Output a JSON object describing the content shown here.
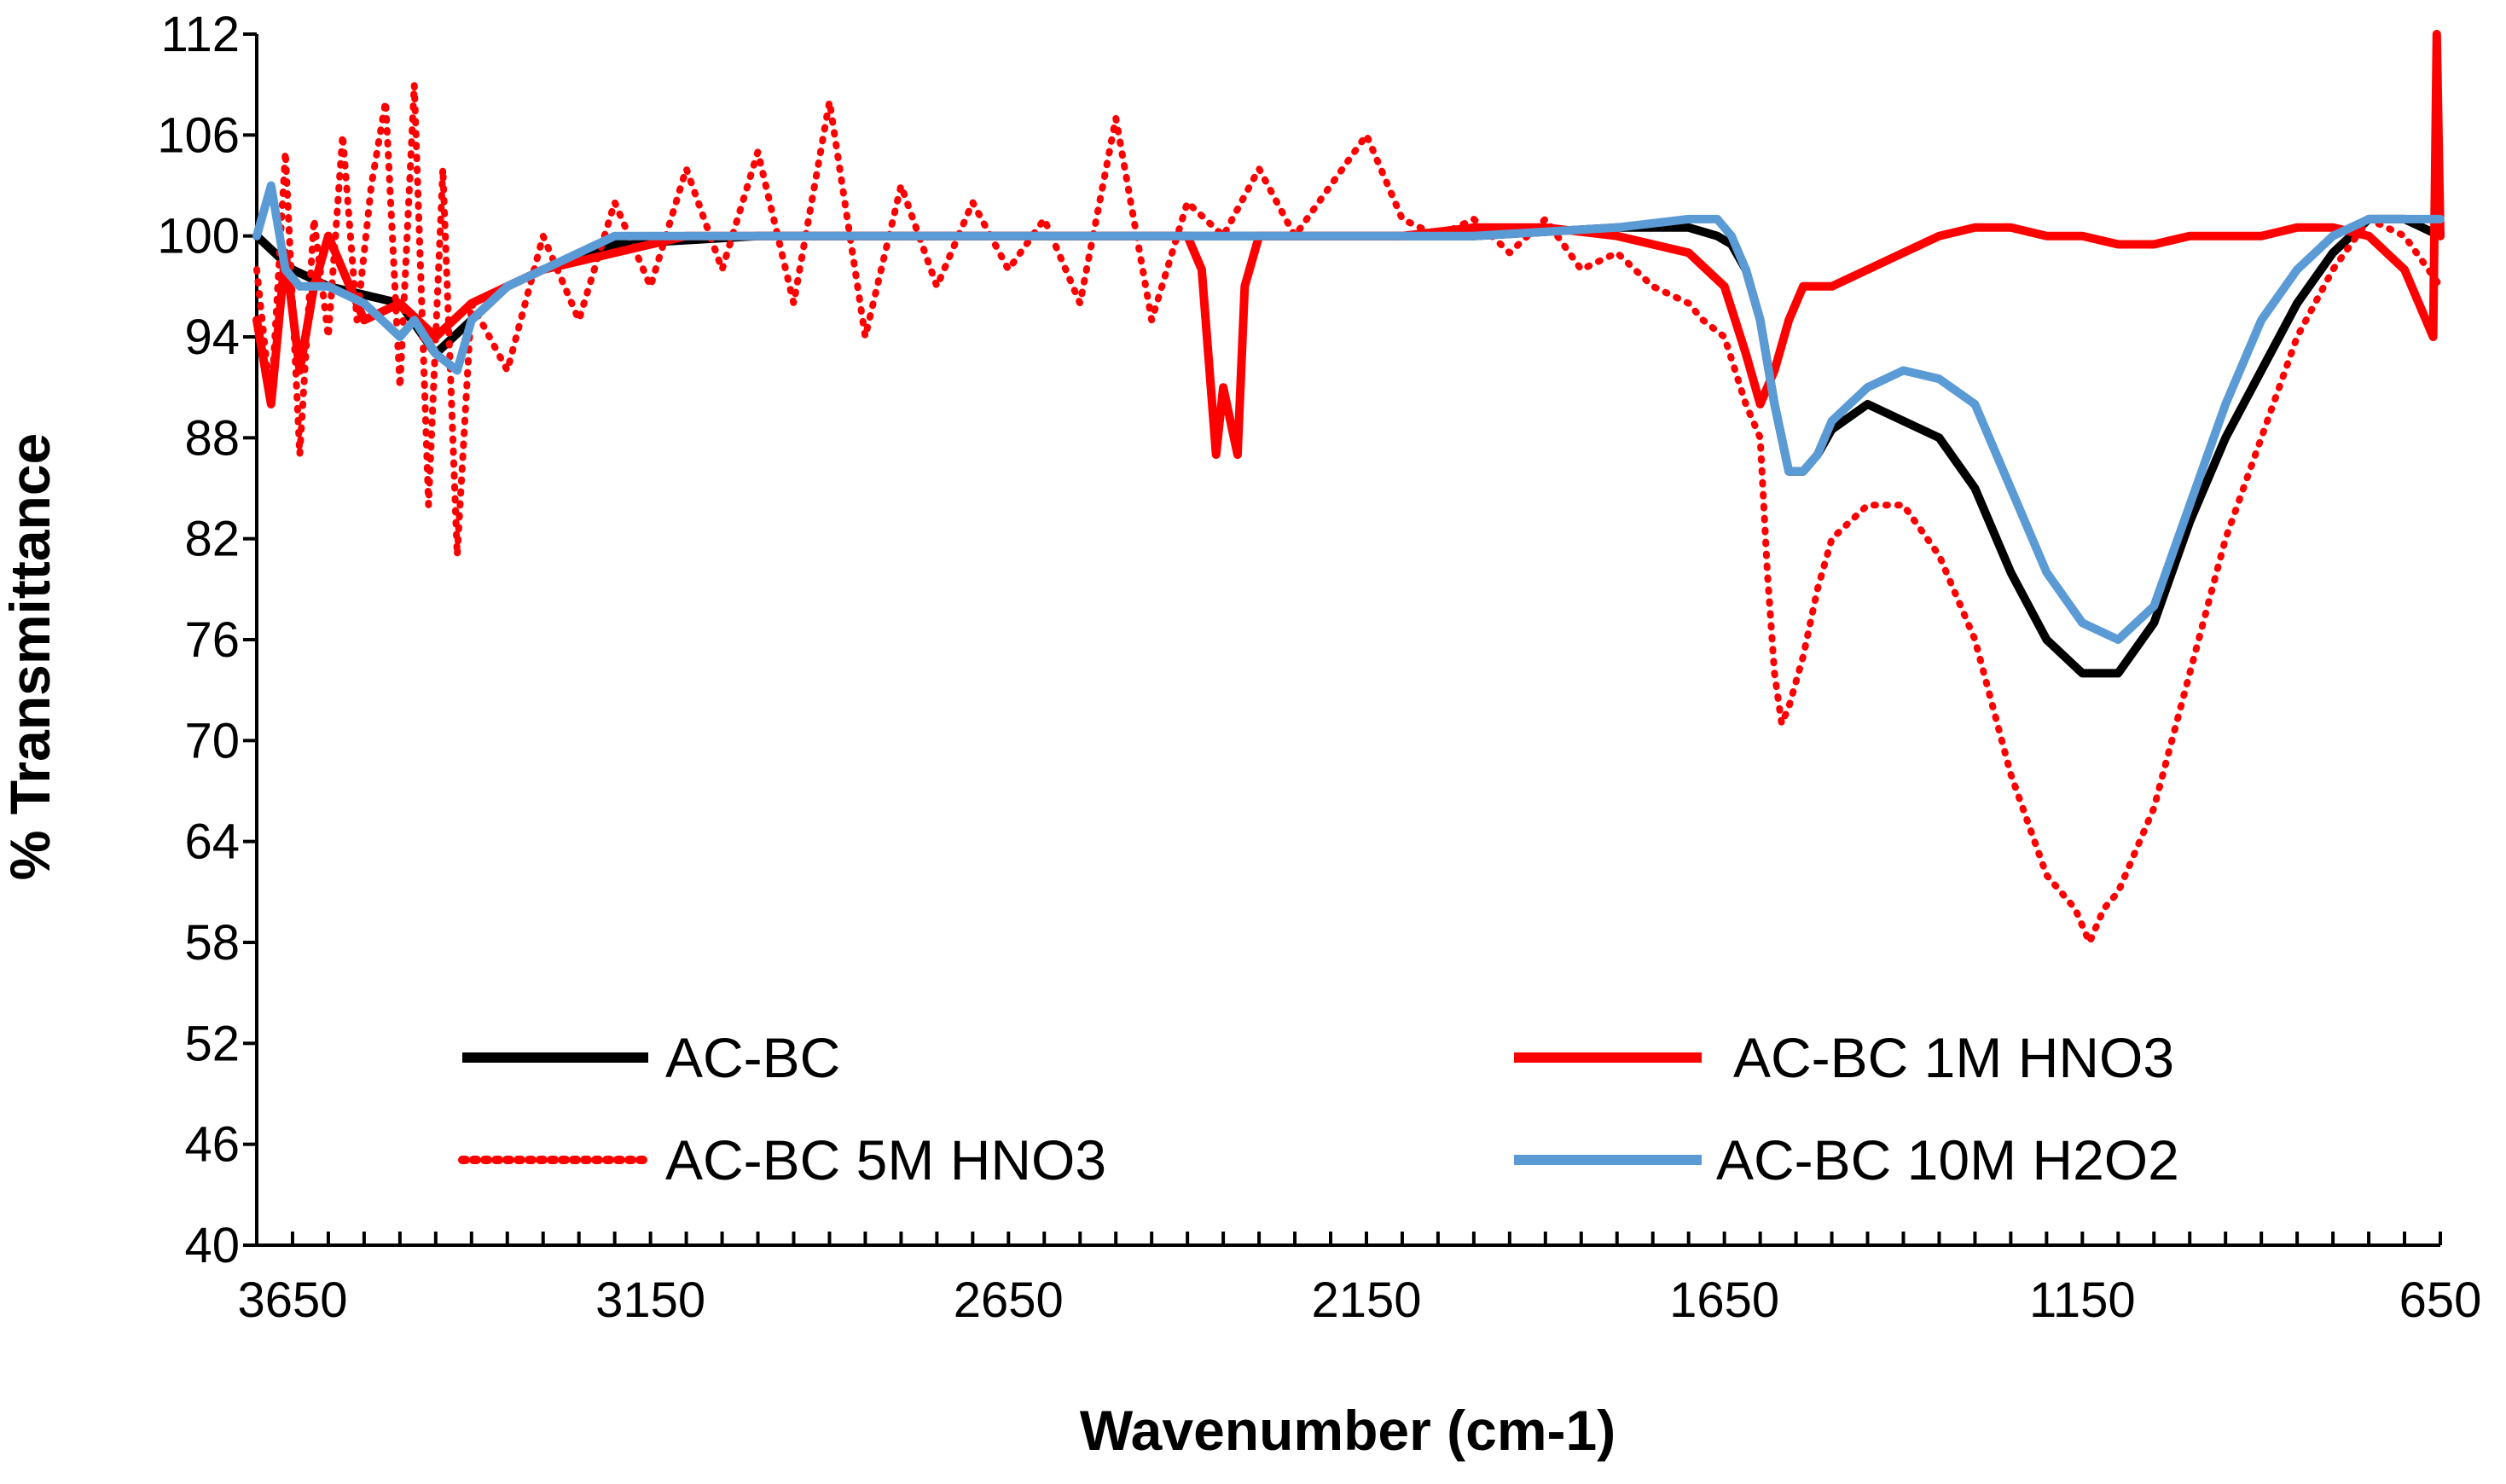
{
  "chart_data": {
    "type": "line",
    "title": "",
    "xlabel": "Wavenumber (cm-1)",
    "ylabel": "% Transmittance",
    "xlim": [
      3700,
      650
    ],
    "ylim": [
      40,
      112
    ],
    "x_reversed": true,
    "x_ticks": [
      3650,
      3150,
      2650,
      2150,
      1650,
      1150,
      650
    ],
    "y_ticks": [
      40,
      46,
      52,
      58,
      64,
      70,
      76,
      82,
      88,
      94,
      100,
      106,
      112
    ],
    "grid": false,
    "legend_placement": "bottom",
    "series": [
      {
        "name": "AC-BC",
        "color": "#000000",
        "style": "solid",
        "x": [
          3700,
          3650,
          3600,
          3500,
          3450,
          3400,
          3350,
          3300,
          3200,
          3000,
          2800,
          2600,
          2400,
          2200,
          2000,
          1800,
          1700,
          1660,
          1640,
          1620,
          1600,
          1580,
          1560,
          1540,
          1520,
          1500,
          1450,
          1400,
          1350,
          1300,
          1250,
          1200,
          1150,
          1100,
          1050,
          1000,
          950,
          900,
          850,
          800,
          750,
          700,
          650
        ],
        "y": [
          100,
          98,
          97,
          96,
          93,
          95,
          97,
          98,
          99.5,
          100,
          100,
          100,
          100,
          100,
          100,
          100.5,
          100.5,
          100,
          99.5,
          98,
          95,
          90,
          86,
          86,
          87,
          88.5,
          90,
          89,
          88,
          85,
          80,
          76,
          74,
          74,
          77,
          83,
          88,
          92,
          96,
          99,
          101,
          101,
          100
        ]
      },
      {
        "name": "AC-BC 1M HNO3",
        "color": "#ff0000",
        "style": "solid",
        "x": [
          3700,
          3680,
          3660,
          3640,
          3620,
          3600,
          3550,
          3500,
          3450,
          3400,
          3350,
          3300,
          3200,
          3100,
          3000,
          2900,
          2800,
          2700,
          2600,
          2500,
          2400,
          2380,
          2360,
          2350,
          2330,
          2320,
          2300,
          2250,
          2200,
          2150,
          2100,
          2000,
          1900,
          1800,
          1700,
          1650,
          1620,
          1600,
          1580,
          1560,
          1540,
          1500,
          1450,
          1400,
          1350,
          1300,
          1250,
          1200,
          1150,
          1100,
          1050,
          1000,
          950,
          900,
          850,
          800,
          750,
          700,
          660,
          655,
          650
        ],
        "y": [
          95,
          90,
          99,
          92,
          97,
          100,
          95,
          96,
          94,
          96,
          97,
          98,
          99,
          100,
          100,
          100,
          100,
          100,
          100,
          100,
          100,
          98,
          87,
          91,
          87,
          97,
          100,
          100,
          100,
          100,
          100,
          100.5,
          100.5,
          100,
          99,
          97,
          93,
          90,
          92,
          95,
          97,
          97,
          98,
          99,
          100,
          100.5,
          100.5,
          100,
          100,
          99.5,
          99.5,
          100,
          100,
          100,
          100.5,
          100.5,
          100,
          98,
          94,
          112,
          100
        ]
      },
      {
        "name": "AC-BC 5M HNO3",
        "color": "#ff0000",
        "style": "dotted",
        "x": [
          3700,
          3680,
          3660,
          3640,
          3620,
          3600,
          3580,
          3560,
          3540,
          3520,
          3500,
          3480,
          3460,
          3440,
          3420,
          3400,
          3350,
          3300,
          3250,
          3200,
          3150,
          3100,
          3050,
          3000,
          2950,
          2900,
          2850,
          2800,
          2750,
          2700,
          2650,
          2600,
          2550,
          2500,
          2450,
          2400,
          2350,
          2300,
          2250,
          2200,
          2150,
          2100,
          2050,
          2000,
          1950,
          1900,
          1850,
          1800,
          1750,
          1700,
          1680,
          1650,
          1620,
          1600,
          1590,
          1580,
          1570,
          1560,
          1540,
          1520,
          1500,
          1450,
          1400,
          1350,
          1300,
          1250,
          1200,
          1160,
          1140,
          1120,
          1100,
          1080,
          1050,
          1000,
          950,
          900,
          850,
          800,
          750,
          700,
          650
        ],
        "y": [
          98,
          90,
          105,
          87,
          101,
          94,
          106,
          95,
          103,
          108,
          91,
          109,
          84,
          104,
          81,
          96,
          92,
          100,
          95,
          102,
          97,
          104,
          98,
          105,
          96,
          108,
          94,
          103,
          97,
          102,
          98,
          101,
          96,
          107,
          95,
          102,
          100,
          104,
          100,
          103,
          106,
          101,
          100,
          101,
          99,
          101,
          98,
          99,
          97,
          96,
          95,
          94,
          90,
          88,
          80,
          74,
          71,
          72,
          75,
          79,
          82,
          84,
          84,
          81,
          76,
          68,
          62,
          60,
          58,
          60,
          61,
          63,
          66,
          74,
          82,
          88,
          94,
          98,
          101,
          100,
          97
        ]
      },
      {
        "name": "AC-BC 10M H2O2",
        "color": "#5b9bd5",
        "style": "solid",
        "x": [
          3700,
          3680,
          3660,
          3640,
          3600,
          3550,
          3500,
          3480,
          3450,
          3420,
          3400,
          3350,
          3300,
          3250,
          3200,
          3100,
          3000,
          2900,
          2800,
          2600,
          2400,
          2200,
          2000,
          1800,
          1700,
          1660,
          1640,
          1620,
          1600,
          1580,
          1560,
          1540,
          1520,
          1500,
          1450,
          1400,
          1350,
          1300,
          1250,
          1200,
          1150,
          1100,
          1050,
          1000,
          950,
          900,
          850,
          800,
          750,
          700,
          650
        ],
        "y": [
          100,
          103,
          98,
          97,
          97,
          96,
          94,
          95,
          93,
          92,
          95,
          97,
          98,
          99,
          100,
          100,
          100,
          100,
          100,
          100,
          100,
          100,
          100,
          100.5,
          101,
          101,
          100,
          98,
          95,
          90,
          86,
          86,
          87,
          89,
          91,
          92,
          91.5,
          90,
          85,
          80,
          77,
          76,
          78,
          84,
          90,
          95,
          98,
          100,
          101,
          101,
          101
        ]
      }
    ]
  }
}
